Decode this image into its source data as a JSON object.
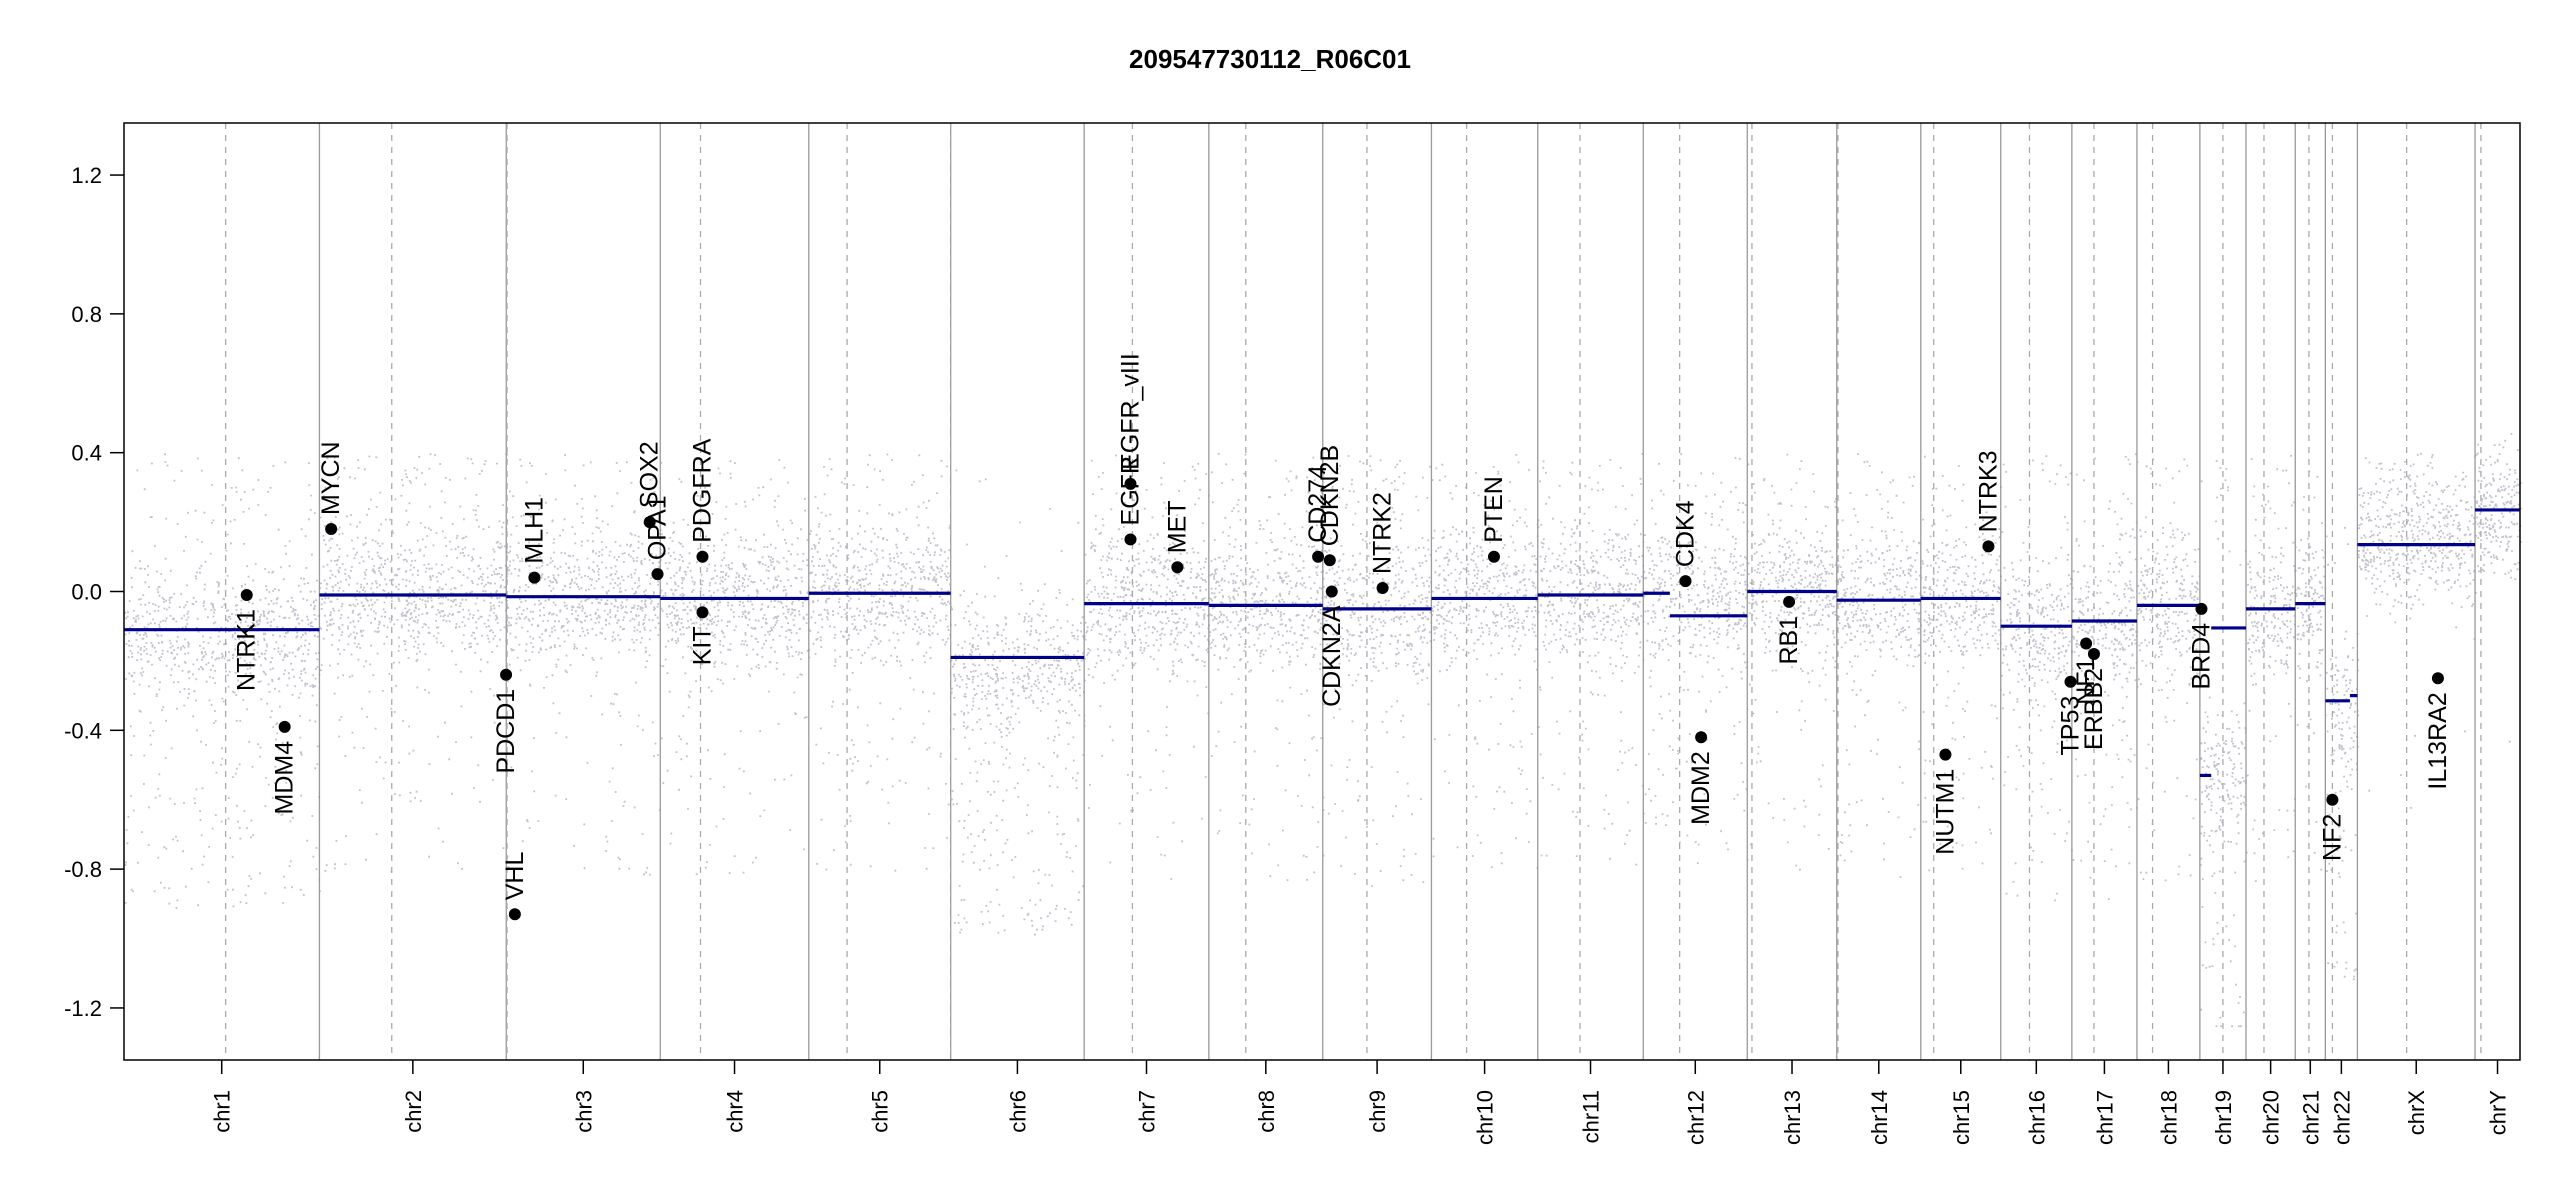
{
  "chart_data": {
    "type": "scatter",
    "title": "209547730112_R06C01",
    "xlabel": "",
    "ylabel": "",
    "ylim": [
      -1.35,
      1.35
    ],
    "y_ticks": [
      1.2,
      0.8,
      0.4,
      0.0,
      -0.4,
      -0.8,
      -1.2
    ],
    "y_tick_labels": [
      "1.2",
      "0.8",
      "0.4",
      "0.0",
      "-0.4",
      "-0.8",
      "-1.2"
    ],
    "grid": false,
    "colors": {
      "gain": "#3b3bb3",
      "loss": "#b3141e",
      "neutral": "#b0b0b0",
      "segment": "#00008b",
      "gene_point": "#000000"
    },
    "chromosomes": [
      {
        "name": "chr1",
        "start": 0,
        "end": 1000,
        "centromere": 520,
        "gain": 0.2,
        "loss": 0.55,
        "seed": 11
      },
      {
        "name": "chr2",
        "start": 1000,
        "end": 1956,
        "centromere": 1370,
        "gain": 0.35,
        "loss": 0.25,
        "seed": 12
      },
      {
        "name": "chr3",
        "start": 1956,
        "end": 2744,
        "centromere": 1960,
        "gain": 0.35,
        "loss": 0.3,
        "seed": 13
      },
      {
        "name": "chr4",
        "start": 2744,
        "end": 3504,
        "centromere": 2950,
        "gain": 0.3,
        "loss": 0.35,
        "seed": 14
      },
      {
        "name": "chr5",
        "start": 3504,
        "end": 4230,
        "centromere": 3700,
        "gain": 0.3,
        "loss": 0.3,
        "seed": 15
      },
      {
        "name": "chr6",
        "start": 4230,
        "end": 4913,
        "centromere": 4230,
        "gain": 0.05,
        "loss": 0.85,
        "seed": 16
      },
      {
        "name": "chr7",
        "start": 4913,
        "end": 5551,
        "centromere": 5160,
        "gain": 0.45,
        "loss": 0.2,
        "seed": 17
      },
      {
        "name": "chr8",
        "start": 5551,
        "end": 6134,
        "centromere": 5740,
        "gain": 0.35,
        "loss": 0.3,
        "seed": 18
      },
      {
        "name": "chr9",
        "start": 6134,
        "end": 6690,
        "centromere": 6360,
        "gain": 0.4,
        "loss": 0.35,
        "seed": 19
      },
      {
        "name": "chr10",
        "start": 6690,
        "end": 7234,
        "centromere": 6870,
        "gain": 0.4,
        "loss": 0.3,
        "seed": 20
      },
      {
        "name": "chr11",
        "start": 7234,
        "end": 7774,
        "centromere": 7450,
        "gain": 0.35,
        "loss": 0.3,
        "seed": 21
      },
      {
        "name": "chr12",
        "start": 7774,
        "end": 8306,
        "centromere": 7960,
        "gain": 0.35,
        "loss": 0.4,
        "seed": 22
      },
      {
        "name": "chr13",
        "start": 8306,
        "end": 8764,
        "centromere": 8330,
        "gain": 0.4,
        "loss": 0.3,
        "seed": 23
      },
      {
        "name": "chr14",
        "start": 8764,
        "end": 9194,
        "centromere": 8770,
        "gain": 0.35,
        "loss": 0.3,
        "seed": 24
      },
      {
        "name": "chr15",
        "start": 9194,
        "end": 9603,
        "centromere": 9260,
        "gain": 0.3,
        "loss": 0.35,
        "seed": 25
      },
      {
        "name": "chr16",
        "start": 9603,
        "end": 9967,
        "centromere": 9750,
        "gain": 0.25,
        "loss": 0.45,
        "seed": 26
      },
      {
        "name": "chr17",
        "start": 9967,
        "end": 10300,
        "centromere": 10080,
        "gain": 0.25,
        "loss": 0.5,
        "seed": 27
      },
      {
        "name": "chr18",
        "start": 10300,
        "end": 10622,
        "centromere": 10380,
        "gain": 0.25,
        "loss": 0.35,
        "seed": 28
      },
      {
        "name": "chr19",
        "start": 10622,
        "end": 10858,
        "centromere": 10740,
        "gain": 0.2,
        "loss": 0.65,
        "seed": 29
      },
      {
        "name": "chr20",
        "start": 10858,
        "end": 11110,
        "centromere": 10950,
        "gain": 0.3,
        "loss": 0.35,
        "seed": 30
      },
      {
        "name": "chr21",
        "start": 11110,
        "end": 11264,
        "centromere": 11180,
        "gain": 0.25,
        "loss": 0.3,
        "seed": 31
      },
      {
        "name": "chr22",
        "start": 11264,
        "end": 11428,
        "centromere": 11300,
        "gain": 0.1,
        "loss": 0.8,
        "seed": 32
      },
      {
        "name": "chrX",
        "start": 11428,
        "end": 12030,
        "centromere": 11680,
        "gain": 0.8,
        "loss": 0.05,
        "seed": 33
      },
      {
        "name": "chrY",
        "start": 12030,
        "end": 12260,
        "centromere": 12060,
        "gain": 0.6,
        "loss": 0.05,
        "seed": 34
      }
    ],
    "x_range": [
      0,
      12260
    ],
    "segments": [
      {
        "x0": 0,
        "x1": 1000,
        "y": -0.11
      },
      {
        "x0": 1000,
        "x1": 1956,
        "y": -0.01
      },
      {
        "x0": 1956,
        "x1": 2744,
        "y": -0.015
      },
      {
        "x0": 2744,
        "x1": 3504,
        "y": -0.02
      },
      {
        "x0": 3504,
        "x1": 4230,
        "y": -0.005
      },
      {
        "x0": 4230,
        "x1": 4913,
        "y": -0.19
      },
      {
        "x0": 4913,
        "x1": 5551,
        "y": -0.035
      },
      {
        "x0": 5551,
        "x1": 6134,
        "y": -0.04
      },
      {
        "x0": 6134,
        "x1": 6690,
        "y": -0.05
      },
      {
        "x0": 6690,
        "x1": 7234,
        "y": -0.02
      },
      {
        "x0": 7234,
        "x1": 7774,
        "y": -0.01
      },
      {
        "x0": 7774,
        "x1": 7910,
        "y": -0.005
      },
      {
        "x0": 7910,
        "x1": 8306,
        "y": -0.07
      },
      {
        "x0": 8306,
        "x1": 8764,
        "y": 0.0
      },
      {
        "x0": 8764,
        "x1": 9194,
        "y": -0.025
      },
      {
        "x0": 9194,
        "x1": 9603,
        "y": -0.02
      },
      {
        "x0": 9603,
        "x1": 9967,
        "y": -0.1
      },
      {
        "x0": 9967,
        "x1": 10300,
        "y": -0.085
      },
      {
        "x0": 10300,
        "x1": 10622,
        "y": -0.04
      },
      {
        "x0": 10622,
        "x1": 10680,
        "y": -0.53
      },
      {
        "x0": 10680,
        "x1": 10858,
        "y": -0.105
      },
      {
        "x0": 10858,
        "x1": 11110,
        "y": -0.05
      },
      {
        "x0": 11110,
        "x1": 11264,
        "y": -0.035
      },
      {
        "x0": 11264,
        "x1": 11390,
        "y": -0.315
      },
      {
        "x0": 11390,
        "x1": 11428,
        "y": -0.3
      },
      {
        "x0": 11428,
        "x1": 12030,
        "y": 0.135
      },
      {
        "x0": 12030,
        "x1": 12260,
        "y": 0.235
      }
    ],
    "genes": [
      {
        "name": "NTRK1",
        "x": 628,
        "y": -0.01,
        "label_side": "below"
      },
      {
        "name": "MDM4",
        "x": 822,
        "y": -0.39,
        "label_side": "below"
      },
      {
        "name": "MYCN",
        "x": 1060,
        "y": 0.18,
        "label_side": "above"
      },
      {
        "name": "PDCD1",
        "x": 1955,
        "y": -0.24,
        "label_side": "below"
      },
      {
        "name": "VHL",
        "x": 2000,
        "y": -0.93,
        "label_side": "above"
      },
      {
        "name": "MLH1",
        "x": 2100,
        "y": 0.04,
        "label_side": "above"
      },
      {
        "name": "SOX2",
        "x": 2690,
        "y": 0.2,
        "label_side": "above"
      },
      {
        "name": "OPA1",
        "x": 2730,
        "y": 0.05,
        "label_side": "above"
      },
      {
        "name": "PDGFRA",
        "x": 2960,
        "y": 0.1,
        "label_side": "above"
      },
      {
        "name": "KIT",
        "x": 2960,
        "y": -0.06,
        "label_side": "below"
      },
      {
        "name": "EGFR",
        "x": 5150,
        "y": 0.15,
        "label_side": "above"
      },
      {
        "name": "EGFR_vIII",
        "x": 5150,
        "y": 0.31,
        "label_side": "above"
      },
      {
        "name": "MET",
        "x": 5390,
        "y": 0.07,
        "label_side": "above"
      },
      {
        "name": "CD274",
        "x": 6110,
        "y": 0.1,
        "label_side": "above"
      },
      {
        "name": "CDKN2B",
        "x": 6170,
        "y": 0.09,
        "label_side": "above"
      },
      {
        "name": "CDKN2A",
        "x": 6180,
        "y": 0.0,
        "label_side": "below"
      },
      {
        "name": "NTRK2",
        "x": 6440,
        "y": 0.01,
        "label_side": "above"
      },
      {
        "name": "PTEN",
        "x": 7010,
        "y": 0.1,
        "label_side": "above"
      },
      {
        "name": "CDK4",
        "x": 7990,
        "y": 0.03,
        "label_side": "above"
      },
      {
        "name": "MDM2",
        "x": 8070,
        "y": -0.42,
        "label_side": "below"
      },
      {
        "name": "RB1",
        "x": 8520,
        "y": -0.03,
        "label_side": "below"
      },
      {
        "name": "NUTM1",
        "x": 9320,
        "y": -0.47,
        "label_side": "below"
      },
      {
        "name": "NTRK3",
        "x": 9540,
        "y": 0.13,
        "label_side": "above"
      },
      {
        "name": "TP53",
        "x": 9960,
        "y": -0.26,
        "label_side": "below"
      },
      {
        "name": "NF1",
        "x": 10040,
        "y": -0.15,
        "label_side": "below"
      },
      {
        "name": "ERBB2",
        "x": 10080,
        "y": -0.18,
        "label_side": "below"
      },
      {
        "name": "BRD4",
        "x": 10630,
        "y": -0.05,
        "label_side": "below"
      },
      {
        "name": "NF2",
        "x": 11300,
        "y": -0.6,
        "label_side": "below"
      },
      {
        "name": "IL13RA2",
        "x": 11840,
        "y": -0.25,
        "label_side": "below"
      }
    ]
  }
}
